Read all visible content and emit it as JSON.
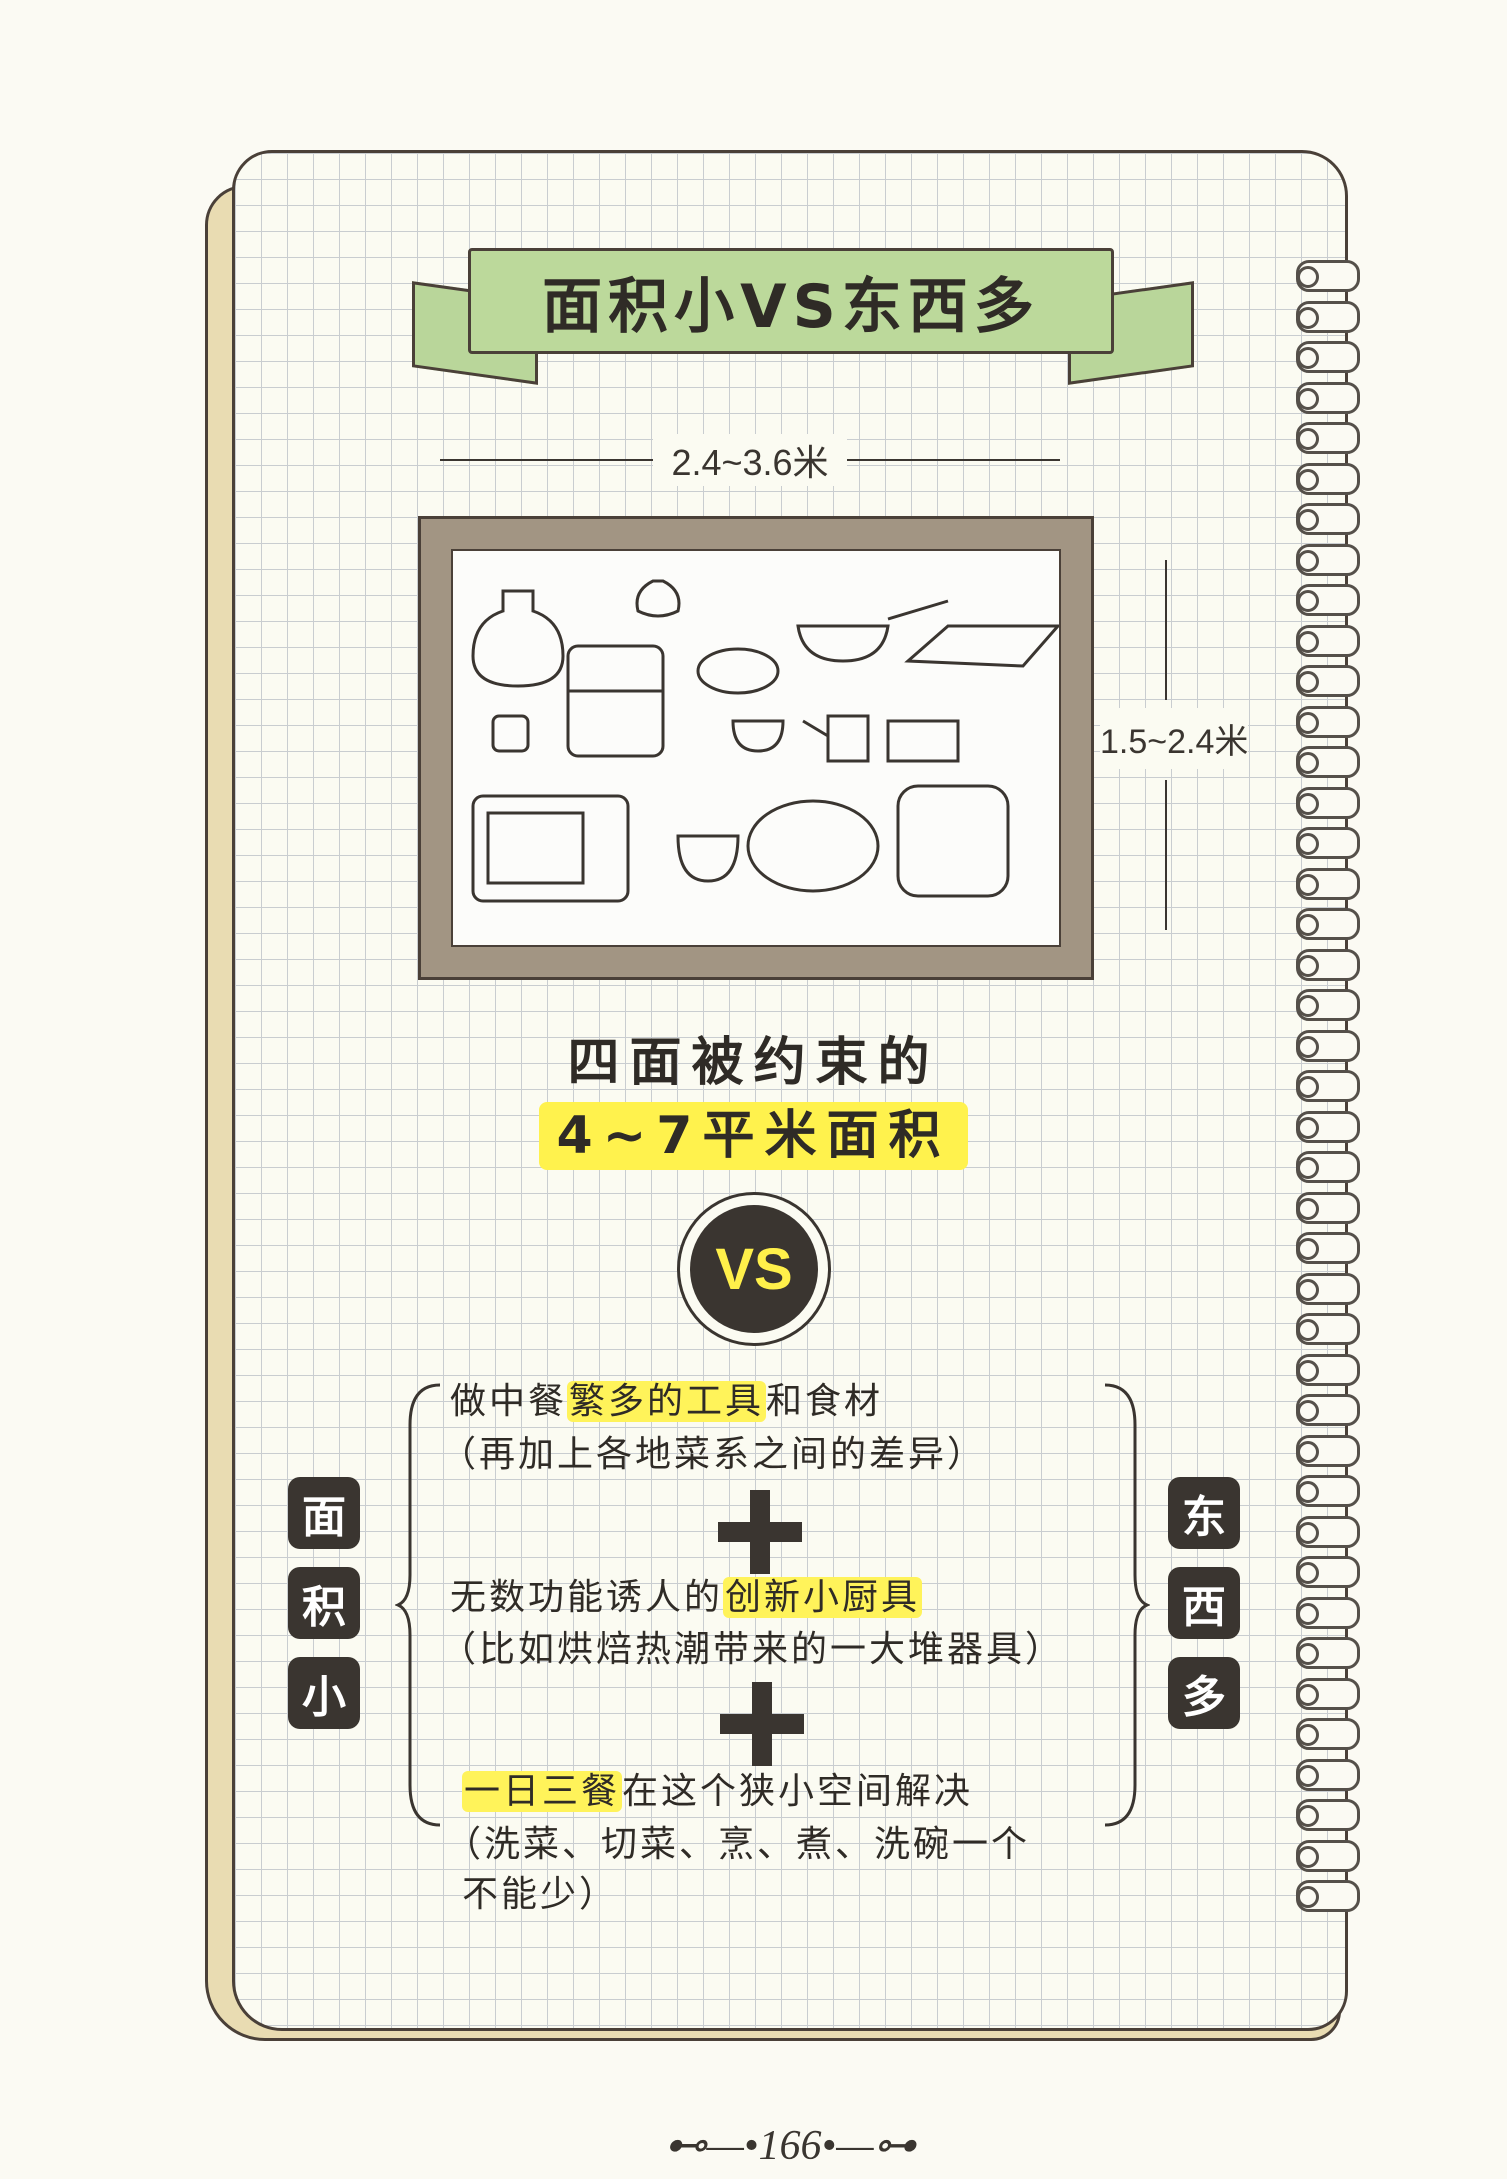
{
  "title": "面积小VS东西多",
  "width_label": "2.4~3.6米",
  "height_label": "1.5~2.4米",
  "headline_line1": "四面被约束的",
  "headline_line2": "4~7平米面积",
  "vs_text": "VS",
  "left_label": [
    "面",
    "积",
    "小"
  ],
  "right_label": [
    "东",
    "西",
    "多"
  ],
  "items": [
    {
      "prefix": "做中餐",
      "highlight": "繁多的工具",
      "suffix": "和食材",
      "note": "（再加上各地菜系之间的差异）"
    },
    {
      "prefix": "无数功能诱人的",
      "highlight": "创新小厨具",
      "suffix": "",
      "note": "（比如烘焙热潮带来的一大堆器具）"
    },
    {
      "prefix": "",
      "highlight": "一日三餐",
      "suffix": "在这个狭小空间解决",
      "note": "（洗菜、切菜、烹、煮、洗碗一个",
      "note2": "不能少）"
    }
  ],
  "page_number": "166",
  "colors": {
    "banner": "#bcd99b",
    "highlight": "#fff24d",
    "frame": "#a29583",
    "dark": "#3a3530"
  }
}
